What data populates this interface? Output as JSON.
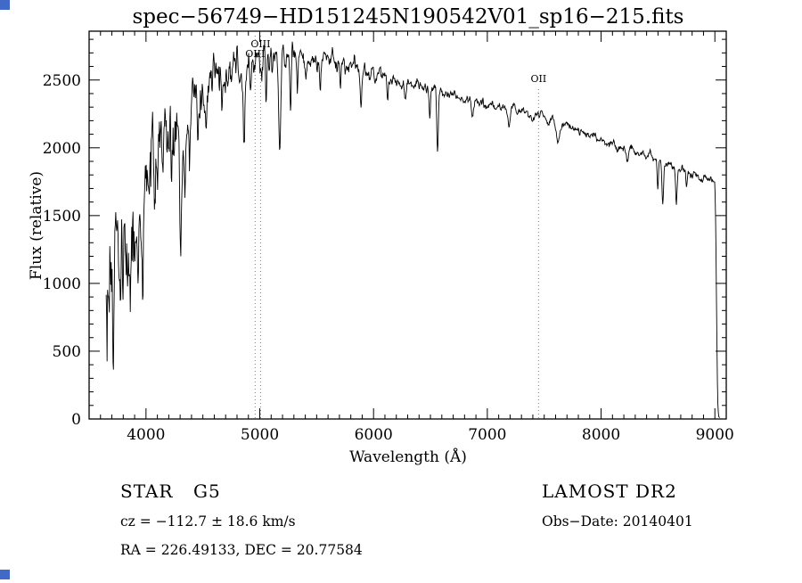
{
  "page": {
    "background": "#ffffff",
    "accent_artifact_color": "#4169c8"
  },
  "chart_data": {
    "type": "line",
    "title": "spec−56749−HD151245N190542V01_sp16−215.fits",
    "xlabel": "Wavelength (Å)",
    "ylabel": "Flux (relative)",
    "x_range": [
      3500,
      9100
    ],
    "y_range": [
      0,
      2860
    ],
    "x_ticks": [
      4000,
      5000,
      6000,
      7000,
      8000,
      9000
    ],
    "x_minor_step": 100,
    "y_ticks": [
      0,
      500,
      1000,
      1500,
      2000,
      2500
    ],
    "y_minor_step": 100,
    "grid": false,
    "legend": "none",
    "line_color": "#000000",
    "frame_color": "#000000",
    "marker_line_color": "#777777",
    "wave_start": 3650,
    "wave_end": 9045,
    "sample_step": 4,
    "continuum": [
      [
        3650,
        650
      ],
      [
        3700,
        850
      ],
      [
        3750,
        950
      ],
      [
        3800,
        1050
      ],
      [
        3850,
        1150
      ],
      [
        3900,
        1150
      ],
      [
        3950,
        1350
      ],
      [
        4000,
        1750
      ],
      [
        4050,
        1900
      ],
      [
        4100,
        1950
      ],
      [
        4150,
        2050
      ],
      [
        4200,
        2100
      ],
      [
        4250,
        2130
      ],
      [
        4300,
        2150
      ],
      [
        4350,
        2250
      ],
      [
        4400,
        2280
      ],
      [
        4450,
        2320
      ],
      [
        4500,
        2360
      ],
      [
        4600,
        2440
      ],
      [
        4700,
        2510
      ],
      [
        4800,
        2570
      ],
      [
        4900,
        2620
      ],
      [
        5000,
        2650
      ],
      [
        5100,
        2660
      ],
      [
        5200,
        2670
      ],
      [
        5300,
        2670
      ],
      [
        5400,
        2665
      ],
      [
        5500,
        2655
      ],
      [
        5600,
        2645
      ],
      [
        5700,
        2625
      ],
      [
        5800,
        2605
      ],
      [
        5900,
        2580
      ],
      [
        6000,
        2555
      ],
      [
        6100,
        2530
      ],
      [
        6200,
        2505
      ],
      [
        6300,
        2480
      ],
      [
        6400,
        2460
      ],
      [
        6500,
        2435
      ],
      [
        6600,
        2410
      ],
      [
        6700,
        2385
      ],
      [
        6800,
        2360
      ],
      [
        6900,
        2340
      ],
      [
        7000,
        2320
      ],
      [
        7100,
        2300
      ],
      [
        7200,
        2280
      ],
      [
        7300,
        2265
      ],
      [
        7400,
        2250
      ],
      [
        7500,
        2230
      ],
      [
        7600,
        2195
      ],
      [
        7700,
        2160
      ],
      [
        7800,
        2125
      ],
      [
        7900,
        2095
      ],
      [
        8000,
        2065
      ],
      [
        8100,
        2035
      ],
      [
        8200,
        2005
      ],
      [
        8300,
        1975
      ],
      [
        8400,
        1945
      ],
      [
        8500,
        1905
      ],
      [
        8600,
        1875
      ],
      [
        8700,
        1845
      ],
      [
        8800,
        1815
      ],
      [
        8900,
        1785
      ],
      [
        8960,
        1765
      ],
      [
        9000,
        1745
      ],
      [
        9008,
        1400
      ],
      [
        9016,
        700
      ],
      [
        9024,
        150
      ],
      [
        9032,
        20
      ],
      [
        9045,
        5
      ]
    ],
    "absorption_lines": [
      [
        3933,
        500,
        7
      ],
      [
        3968,
        450,
        7
      ],
      [
        4045,
        250,
        5
      ],
      [
        4101,
        350,
        6
      ],
      [
        4144,
        250,
        5
      ],
      [
        4226,
        300,
        5
      ],
      [
        4305,
        800,
        10
      ],
      [
        4340,
        400,
        6
      ],
      [
        4383,
        350,
        5
      ],
      [
        4455,
        250,
        5
      ],
      [
        4531,
        250,
        5
      ],
      [
        4668,
        250,
        5
      ],
      [
        4861,
        500,
        7
      ],
      [
        4920,
        200,
        5
      ],
      [
        5055,
        350,
        5
      ],
      [
        5110,
        250,
        5
      ],
      [
        5175,
        650,
        9
      ],
      [
        5270,
        450,
        6
      ],
      [
        5330,
        250,
        5
      ],
      [
        5406,
        200,
        5
      ],
      [
        5530,
        200,
        5
      ],
      [
        5710,
        150,
        5
      ],
      [
        5890,
        260,
        7
      ],
      [
        6122,
        150,
        5
      ],
      [
        6280,
        120,
        6
      ],
      [
        6495,
        180,
        5
      ],
      [
        6563,
        470,
        7
      ],
      [
        6870,
        130,
        9
      ],
      [
        7190,
        90,
        8
      ],
      [
        7620,
        140,
        14
      ],
      [
        8230,
        100,
        8
      ],
      [
        8498,
        220,
        6
      ],
      [
        8542,
        300,
        7
      ],
      [
        8662,
        280,
        7
      ],
      [
        8750,
        120,
        6
      ]
    ],
    "noise": {
      "seed": 20140401,
      "base": 18,
      "amp": 330,
      "tau": 700,
      "ar": 0.75
    },
    "markers": [
      {
        "label": "OIII",
        "wavelength": 4959,
        "line_top": 40,
        "label_y": 64
      },
      {
        "label": "OIII",
        "wavelength": 5007,
        "line_top": 40,
        "label_y": 53
      },
      {
        "label": "OII",
        "wavelength": 7450,
        "line_top": 100,
        "label_y": 92
      }
    ],
    "annotations": {
      "star_label": "STAR",
      "subclass": "G5",
      "survey": "LAMOST DR2",
      "cz_line": "cz = −112.7 ± 18.6 km/s",
      "obs_date": "Obs−Date: 20140401",
      "radec": "RA = 226.49133, DEC =  20.77584"
    }
  }
}
